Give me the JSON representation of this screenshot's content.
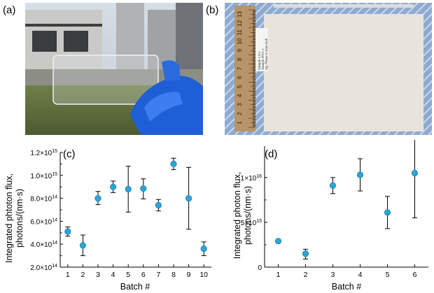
{
  "panels": {
    "a": {
      "label": "(a)"
    },
    "b": {
      "label": "(b)",
      "ruler_numbers": [
        "13",
        "12",
        "11",
        "10",
        "9",
        "8",
        "7",
        "6",
        "5",
        "4",
        "3",
        "2",
        "1"
      ],
      "tag_lines": [
        "Sample 1.0.1",
        "Sample IPFC-1",
        "Ag, Phase 0 1mm lock"
      ]
    },
    "c": {
      "label": "(c)"
    },
    "d": {
      "label": "(d)"
    }
  },
  "colors": {
    "marker": "#2aa6d9",
    "marker_edge": "#1f7ea6",
    "axis": "#000000",
    "glove": "#1f5fd6",
    "paper": "#e8e4dc"
  },
  "chart_data": [
    {
      "type": "scatter",
      "panel": "c",
      "xlabel": "Batch #",
      "ylabel_lines": [
        "Integrated phtoton flux,",
        "photons/(nm·s)"
      ],
      "x": [
        1,
        2,
        3,
        4,
        5,
        6,
        7,
        8,
        9,
        10
      ],
      "xticks": [
        "1",
        "2",
        "3",
        "4",
        "5",
        "6",
        "7",
        "8",
        "9",
        "10"
      ],
      "values": [
        510000000000000.0,
        390000000000000.0,
        800000000000000.0,
        900000000000000.0,
        880000000000000.0,
        885000000000000.0,
        740000000000000.0,
        1100000000000000.0,
        800000000000000.0,
        360000000000000.0
      ],
      "error_low": [
        40000000000000.0,
        90000000000000.0,
        55000000000000.0,
        50000000000000.0,
        200000000000000.0,
        90000000000000.0,
        50000000000000.0,
        50000000000000.0,
        270000000000000.0,
        60000000000000.0
      ],
      "error_high": [
        40000000000000.0,
        90000000000000.0,
        60000000000000.0,
        50000000000000.0,
        200000000000000.0,
        85000000000000.0,
        50000000000000.0,
        50000000000000.0,
        270000000000000.0,
        60000000000000.0
      ],
      "ylim": [
        200000000000000.0,
        1200000000000000.0
      ],
      "yticks": [
        {
          "v": 200000000000000.0,
          "m": "2.0×10",
          "e": "14"
        },
        {
          "v": 400000000000000.0,
          "m": "4.0×10",
          "e": "14"
        },
        {
          "v": 600000000000000.0,
          "m": "6.0×10",
          "e": "14"
        },
        {
          "v": 800000000000000.0,
          "m": "8.0×10",
          "e": "14"
        },
        {
          "v": 1000000000000000.0,
          "m": "1.0×10",
          "e": "15"
        },
        {
          "v": 1200000000000000.0,
          "m": "1.2×10",
          "e": "15"
        }
      ],
      "xlim": [
        0.5,
        10.5
      ],
      "grid": false
    },
    {
      "type": "scatter",
      "panel": "d",
      "xlabel": "Batch #",
      "ylabel_lines": [
        "Integrated photon flux,",
        "photons/(nm·s)"
      ],
      "x": [
        1,
        2,
        3,
        4,
        5,
        6
      ],
      "xticks": [
        "1",
        "2",
        "3",
        "4",
        "5",
        "6"
      ],
      "values": [
        2900000000000000.0,
        1500000000000000.0,
        9100000000000000.0,
        1.03e+16,
        6100000000000000.0,
        1.05e+16
      ],
      "error_low": [
        200000000000000.0,
        600000000000000.0,
        900000000000000.0,
        1800000000000000.0,
        1800000000000000.0,
        5000000000000000.0
      ],
      "error_high": [
        200000000000000.0,
        500000000000000.0,
        900000000000000.0,
        1800000000000000.0,
        1800000000000000.0,
        5000000000000000.0
      ],
      "ylim": [
        0,
        1.35e+16
      ],
      "yticks": [
        {
          "v": 0,
          "m": "0",
          "e": ""
        },
        {
          "v": 5000000000000000.0,
          "m": "5×10",
          "e": "15"
        },
        {
          "v": 1e+16,
          "m": "1×10",
          "e": "16"
        }
      ],
      "xlim": [
        0.5,
        6.5
      ],
      "grid": false
    }
  ]
}
